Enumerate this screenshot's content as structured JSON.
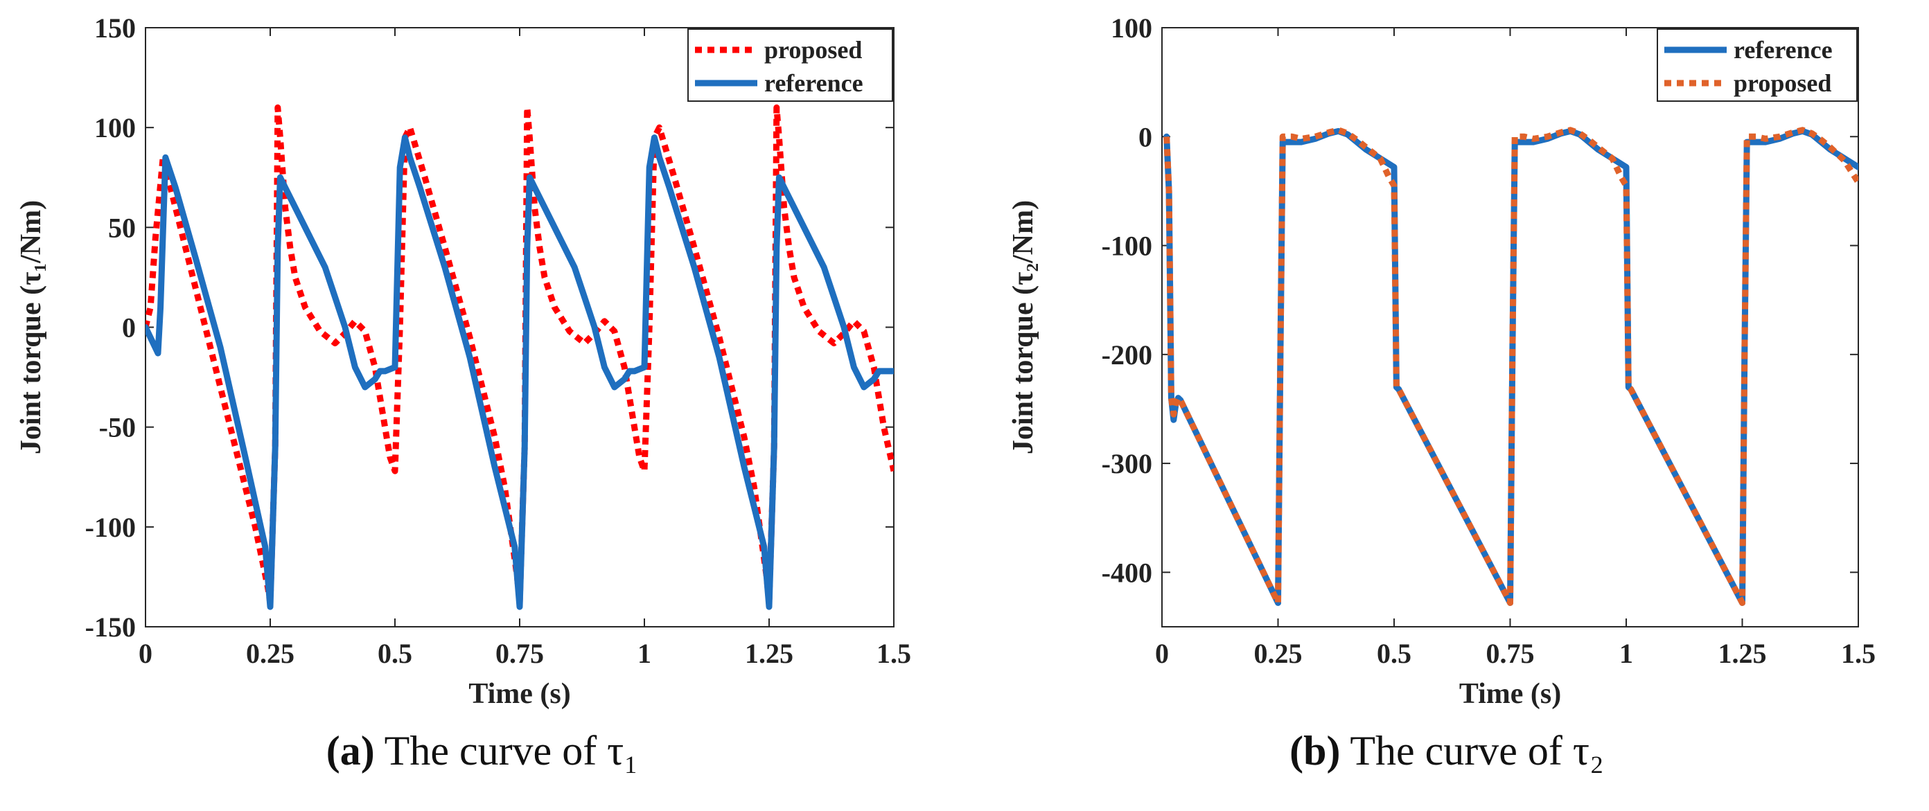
{
  "panels": [
    {
      "caption_letter": "(a)",
      "caption_text": " The curve of τ₁",
      "chart_data": {
        "type": "line",
        "xlabel": "Time (s)",
        "ylabel": "Joint torque (τ₁/Nm)",
        "xlim": [
          0,
          1.5
        ],
        "ylim": [
          -150,
          150
        ],
        "xticks": [
          0,
          0.25,
          0.5,
          0.75,
          1,
          1.25,
          1.5
        ],
        "xtick_labels": [
          "0",
          "0.25",
          "0.5",
          "0.75",
          "1",
          "1.25",
          "1.5"
        ],
        "yticks": [
          -150,
          -100,
          -50,
          0,
          50,
          100,
          150
        ],
        "ytick_labels": [
          "-150",
          "-100",
          "-50",
          "0",
          "50",
          "100",
          "150"
        ],
        "grid": false,
        "legend_position": "top-right",
        "series": [
          {
            "name": "proposed",
            "color": "#ff0000",
            "style": "dotted",
            "x": [
              0,
              0.01,
              0.02,
              0.035,
              0.08,
              0.13,
              0.18,
              0.22,
              0.245,
              0.25,
              0.26,
              0.265,
              0.27,
              0.28,
              0.29,
              0.3,
              0.32,
              0.35,
              0.38,
              0.4,
              0.42,
              0.44,
              0.46,
              0.48,
              0.49,
              0.5,
              0.51,
              0.52,
              0.53,
              0.56,
              0.6,
              0.65,
              0.7,
              0.72,
              0.745,
              0.75,
              0.76,
              0.765,
              0.77,
              0.78,
              0.79,
              0.8,
              0.82,
              0.85,
              0.88,
              0.9,
              0.92,
              0.94,
              0.96,
              0.98,
              0.99,
              1.0,
              1.01,
              1.02,
              1.03,
              1.06,
              1.1,
              1.15,
              1.2,
              1.22,
              1.245,
              1.25,
              1.26,
              1.265,
              1.27,
              1.28,
              1.29,
              1.3,
              1.32,
              1.35,
              1.38,
              1.4,
              1.42,
              1.44,
              1.46,
              1.48,
              1.5
            ],
            "y": [
              0,
              10,
              45,
              85,
              40,
              -10,
              -60,
              -100,
              -130,
              -138,
              -60,
              110,
              95,
              60,
              40,
              25,
              10,
              -2,
              -8,
              -3,
              3,
              -2,
              -20,
              -50,
              -65,
              -72,
              0,
              95,
              100,
              75,
              40,
              -5,
              -55,
              -80,
              -125,
              -138,
              -60,
              110,
              95,
              60,
              40,
              25,
              10,
              -2,
              -8,
              -3,
              3,
              -2,
              -20,
              -50,
              -65,
              -72,
              0,
              95,
              100,
              75,
              40,
              -5,
              -55,
              -80,
              -125,
              -138,
              -60,
              110,
              95,
              60,
              40,
              25,
              10,
              -2,
              -8,
              -3,
              3,
              -2,
              -20,
              -50,
              -72
            ]
          },
          {
            "name": "reference",
            "color": "#1f6fbf",
            "style": "solid",
            "x": [
              0,
              0.025,
              0.03,
              0.04,
              0.06,
              0.1,
              0.15,
              0.2,
              0.24,
              0.25,
              0.26,
              0.265,
              0.27,
              0.28,
              0.3,
              0.33,
              0.36,
              0.38,
              0.4,
              0.42,
              0.44,
              0.46,
              0.47,
              0.48,
              0.5,
              0.51,
              0.52,
              0.53,
              0.55,
              0.6,
              0.65,
              0.7,
              0.74,
              0.75,
              0.76,
              0.765,
              0.77,
              0.78,
              0.8,
              0.83,
              0.86,
              0.88,
              0.9,
              0.92,
              0.94,
              0.96,
              0.97,
              0.98,
              1.0,
              1.01,
              1.02,
              1.03,
              1.05,
              1.1,
              1.15,
              1.2,
              1.24,
              1.25,
              1.26,
              1.265,
              1.27,
              1.28,
              1.3,
              1.33,
              1.36,
              1.38,
              1.4,
              1.42,
              1.44,
              1.46,
              1.47,
              1.48,
              1.5
            ],
            "y": [
              0,
              -13,
              10,
              85,
              70,
              35,
              -10,
              -65,
              -110,
              -140,
              -60,
              40,
              75,
              70,
              60,
              45,
              30,
              15,
              0,
              -20,
              -30,
              -26,
              -22,
              -22,
              -20,
              80,
              95,
              85,
              70,
              30,
              -15,
              -70,
              -110,
              -140,
              -60,
              40,
              75,
              70,
              60,
              45,
              30,
              15,
              0,
              -20,
              -30,
              -26,
              -22,
              -22,
              -20,
              80,
              95,
              85,
              70,
              30,
              -15,
              -70,
              -110,
              -140,
              -60,
              40,
              75,
              70,
              60,
              45,
              30,
              15,
              0,
              -20,
              -30,
              -26,
              -22,
              -22,
              -22
            ]
          }
        ]
      }
    },
    {
      "caption_letter": "(b)",
      "caption_text": " The curve of τ₂",
      "chart_data": {
        "type": "line",
        "xlabel": "Time (s)",
        "ylabel": "Joint torque (τ₂/Nm)",
        "xlim": [
          0,
          1.5
        ],
        "ylim": [
          -450,
          100
        ],
        "xticks": [
          0,
          0.25,
          0.5,
          0.75,
          1,
          1.25,
          1.5
        ],
        "xtick_labels": [
          "0",
          "0.25",
          "0.5",
          "0.75",
          "1",
          "1.25",
          "1.5"
        ],
        "yticks": [
          -400,
          -300,
          -200,
          -100,
          0,
          100
        ],
        "ytick_labels": [
          "-400",
          "-300",
          "-200",
          "-100",
          "0",
          "100"
        ],
        "grid": false,
        "legend_position": "top-right",
        "series": [
          {
            "name": "reference",
            "color": "#1f6fbf",
            "style": "solid",
            "x": [
              0.01,
              0.015,
              0.02,
              0.025,
              0.03,
              0.035,
              0.04,
              0.25,
              0.255,
              0.26,
              0.28,
              0.3,
              0.33,
              0.36,
              0.38,
              0.4,
              0.42,
              0.44,
              0.47,
              0.5,
              0.505,
              0.51,
              0.75,
              0.755,
              0.76,
              0.78,
              0.8,
              0.83,
              0.86,
              0.88,
              0.9,
              0.92,
              0.94,
              0.97,
              1.0,
              1.005,
              1.01,
              1.25,
              1.255,
              1.26,
              1.28,
              1.3,
              1.33,
              1.36,
              1.38,
              1.4,
              1.42,
              1.44,
              1.47,
              1.5
            ],
            "y": [
              0,
              -50,
              -240,
              -260,
              -245,
              -240,
              -242,
              -428,
              -200,
              -5,
              -5,
              -5,
              -2,
              3,
              5,
              2,
              -5,
              -12,
              -20,
              -28,
              -230,
              -232,
              -428,
              -200,
              -5,
              -5,
              -5,
              -2,
              3,
              5,
              2,
              -5,
              -12,
              -20,
              -28,
              -230,
              -232,
              -428,
              -200,
              -5,
              -5,
              -5,
              -2,
              3,
              5,
              2,
              -5,
              -12,
              -20,
              -28
            ]
          },
          {
            "name": "proposed",
            "color": "#e0622a",
            "style": "dotted",
            "x": [
              0.01,
              0.015,
              0.02,
              0.025,
              0.03,
              0.035,
              0.04,
              0.25,
              0.255,
              0.26,
              0.28,
              0.3,
              0.33,
              0.36,
              0.38,
              0.4,
              0.42,
              0.44,
              0.47,
              0.49,
              0.5,
              0.505,
              0.51,
              0.75,
              0.755,
              0.76,
              0.78,
              0.8,
              0.83,
              0.86,
              0.88,
              0.9,
              0.92,
              0.94,
              0.97,
              0.99,
              1.0,
              1.005,
              1.01,
              1.25,
              1.255,
              1.26,
              1.28,
              1.3,
              1.33,
              1.36,
              1.38,
              1.4,
              1.42,
              1.44,
              1.47,
              1.5
            ],
            "y": [
              0,
              -50,
              -240,
              -255,
              -245,
              -240,
              -242,
              -428,
              -200,
              0,
              0,
              -2,
              0,
              4,
              6,
              3,
              -3,
              -10,
              -20,
              -38,
              -45,
              -230,
              -232,
              -428,
              -200,
              0,
              0,
              -2,
              0,
              4,
              6,
              3,
              -3,
              -10,
              -20,
              -38,
              -45,
              -230,
              -232,
              -428,
              -200,
              0,
              0,
              -2,
              0,
              4,
              6,
              3,
              -3,
              -10,
              -22,
              -42
            ]
          }
        ]
      }
    }
  ]
}
